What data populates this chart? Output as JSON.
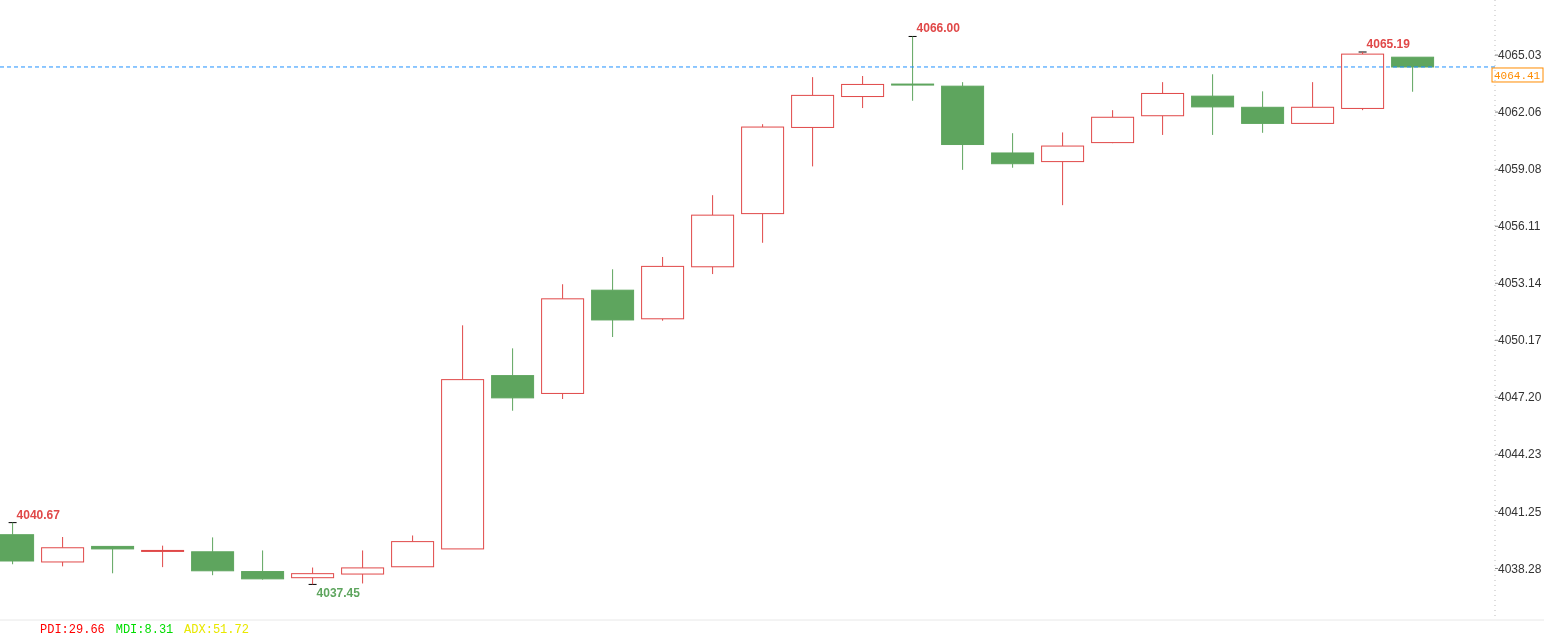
{
  "chart_data": {
    "type": "candlestick",
    "categories": [
      null,
      null,
      null,
      null,
      null,
      null,
      null,
      null,
      null,
      null,
      null,
      null,
      null,
      null,
      null,
      null,
      null,
      null,
      null,
      null,
      null,
      null,
      null,
      null,
      null,
      null,
      null,
      null,
      null
    ],
    "ohlc": [
      [
        4040.04,
        4040.67,
        4038.5,
        4038.67
      ],
      [
        4038.62,
        4039.92,
        4038.39,
        4039.36
      ],
      [
        4039.43,
        4039.45,
        4038.03,
        4039.3
      ],
      [
        4039.2,
        4039.47,
        4038.35,
        4039.22
      ],
      [
        4039.15,
        4039.9,
        4037.93,
        4038.16
      ],
      [
        4038.12,
        4039.22,
        4037.7,
        4037.74
      ],
      [
        4037.8,
        4038.33,
        4037.45,
        4038.01
      ],
      [
        4037.99,
        4039.22,
        4037.5,
        4038.31
      ],
      [
        4038.37,
        4040.0,
        4038.37,
        4039.68
      ],
      [
        4039.3,
        4050.95,
        4039.3,
        4048.12
      ],
      [
        4048.33,
        4049.75,
        4046.5,
        4047.17
      ],
      [
        4047.4,
        4053.09,
        4047.11,
        4052.33
      ],
      [
        4052.78,
        4053.87,
        4050.34,
        4051.23
      ],
      [
        4051.29,
        4054.51,
        4051.19,
        4054.02
      ],
      [
        4054.0,
        4057.73,
        4053.62,
        4056.69
      ],
      [
        4056.77,
        4061.43,
        4055.25,
        4061.28
      ],
      [
        4061.26,
        4063.88,
        4059.23,
        4062.93
      ],
      [
        4062.87,
        4063.94,
        4062.27,
        4063.5
      ],
      [
        4063.52,
        4066.0,
        4062.65,
        4063.48
      ],
      [
        4063.41,
        4063.62,
        4059.05,
        4060.37
      ],
      [
        4059.93,
        4060.96,
        4059.16,
        4059.37
      ],
      [
        4059.48,
        4061.0,
        4057.21,
        4060.29
      ],
      [
        4060.47,
        4062.16,
        4060.44,
        4061.79
      ],
      [
        4061.87,
        4063.62,
        4060.87,
        4063.03
      ],
      [
        4062.89,
        4064.03,
        4060.87,
        4062.33
      ],
      [
        4062.31,
        4063.14,
        4060.98,
        4061.47
      ],
      [
        4061.47,
        4063.62,
        4061.47,
        4062.31
      ],
      [
        4062.25,
        4065.19,
        4062.16,
        4065.08
      ],
      [
        4064.92,
        4064.93,
        4063.12,
        4064.41
      ]
    ],
    "colors": [
      "#5ea55e",
      "#e04848",
      "#5ea55e",
      "#e04848",
      "#5ea55e",
      "#5ea55e",
      "#e04848",
      "#e04848",
      "#e04848",
      "#e04848",
      "#5ea55e",
      "#e04848",
      "#5ea55e",
      "#e04848",
      "#e04848",
      "#e04848",
      "#e04848",
      "#e04848",
      "#5ea55e",
      "#5ea55e",
      "#5ea55e",
      "#e04848",
      "#e04848",
      "#e04848",
      "#5ea55e",
      "#5ea55e",
      "#e04848",
      "#e04848",
      "#5ea55e"
    ],
    "ylim": [
      4035.7,
      4067.9
    ],
    "yticks": [
      4038.28,
      4041.25,
      4044.23,
      {
        "value": 4047.2,
        "label": "4047.20"
      },
      4050.17,
      4053.14,
      4056.11,
      4059.08,
      4062.06,
      4065.03
    ],
    "ref_lines": [
      {
        "axis": "y",
        "value": 4064.41,
        "label": "4064.41",
        "color": "#1e90ff",
        "line_style": "dashed"
      }
    ],
    "annotations": [
      "4040.67",
      "4037.45",
      "4066.00",
      "4065.19",
      "PDI:29.66",
      "MDI:8.31",
      "ADX:51.72"
    ],
    "grid": false
  }
}
